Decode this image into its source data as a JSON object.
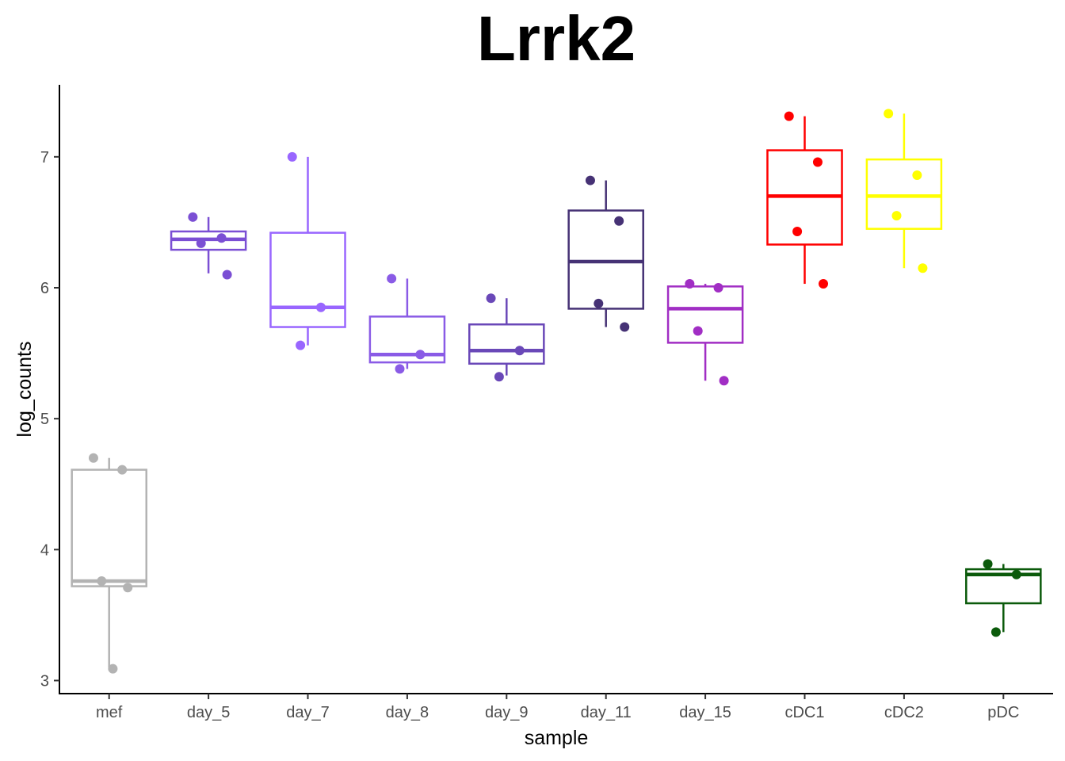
{
  "chart_data": {
    "type": "box",
    "title": "Lrrk2",
    "xlabel": "sample",
    "ylabel": "log_counts",
    "ylim": [
      2.9,
      7.55
    ],
    "yticks": [
      3,
      4,
      5,
      6,
      7
    ],
    "grid": false,
    "legend": "none",
    "categories": [
      "mef",
      "day_5",
      "day_7",
      "day_8",
      "day_9",
      "day_11",
      "day_15",
      "cDC1",
      "cDC2",
      "pDC"
    ],
    "series": [
      {
        "color": "#b3b3b3",
        "box": {
          "lower_whisker": 3.1,
          "q1": 3.72,
          "median": 3.76,
          "q3": 4.61,
          "upper_whisker": 4.7
        },
        "points": [
          4.7,
          4.61,
          3.76,
          3.71,
          3.09
        ]
      },
      {
        "color": "#7b4fd4",
        "box": {
          "lower_whisker": 6.11,
          "q1": 6.29,
          "median": 6.37,
          "q3": 6.43,
          "upper_whisker": 6.54
        },
        "points": [
          6.54,
          6.38,
          6.34,
          6.1
        ]
      },
      {
        "color": "#9966ff",
        "box": {
          "lower_whisker": 5.56,
          "q1": 5.7,
          "median": 5.85,
          "q3": 6.42,
          "upper_whisker": 7.0
        },
        "points": [
          7.0,
          5.85,
          5.56
        ]
      },
      {
        "color": "#8a5be6",
        "box": {
          "lower_whisker": 5.38,
          "q1": 5.43,
          "median": 5.49,
          "q3": 5.78,
          "upper_whisker": 6.07
        },
        "points": [
          6.07,
          5.49,
          5.38
        ]
      },
      {
        "color": "#6a48b8",
        "box": {
          "lower_whisker": 5.33,
          "q1": 5.42,
          "median": 5.52,
          "q3": 5.72,
          "upper_whisker": 5.92
        },
        "points": [
          5.92,
          5.52,
          5.32
        ]
      },
      {
        "color": "#463275",
        "box": {
          "lower_whisker": 5.7,
          "q1": 5.84,
          "median": 6.2,
          "q3": 6.59,
          "upper_whisker": 6.82
        },
        "points": [
          6.82,
          6.51,
          5.88,
          5.7
        ]
      },
      {
        "color": "#a12ec4",
        "box": {
          "lower_whisker": 5.29,
          "q1": 5.58,
          "median": 5.84,
          "q3": 6.01,
          "upper_whisker": 6.03
        },
        "points": [
          6.03,
          6.0,
          5.67,
          5.29
        ]
      },
      {
        "color": "#ff0000",
        "box": {
          "lower_whisker": 6.03,
          "q1": 6.33,
          "median": 6.7,
          "q3": 7.05,
          "upper_whisker": 7.31
        },
        "points": [
          7.31,
          6.96,
          6.43,
          6.03
        ]
      },
      {
        "color": "#ffff00",
        "box": {
          "lower_whisker": 6.15,
          "q1": 6.45,
          "median": 6.7,
          "q3": 6.98,
          "upper_whisker": 7.33
        },
        "points": [
          7.33,
          6.86,
          6.55,
          6.15
        ]
      },
      {
        "color": "#0b5a0b",
        "box": {
          "lower_whisker": 3.37,
          "q1": 3.59,
          "median": 3.81,
          "q3": 3.85,
          "upper_whisker": 3.89
        },
        "points": [
          3.89,
          3.81,
          3.37
        ]
      }
    ]
  }
}
